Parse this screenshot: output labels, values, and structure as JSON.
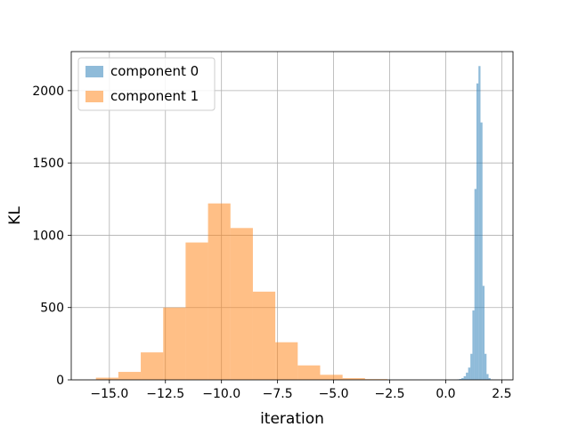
{
  "chart_data": {
    "type": "histogram",
    "xlabel": "iteration",
    "ylabel": "KL",
    "xlim": [
      -16.7,
      3.0
    ],
    "ylim": [
      0,
      2270
    ],
    "xticks": [
      -15.0,
      -12.5,
      -10.0,
      -7.5,
      -5.0,
      -2.5,
      0.0,
      2.5
    ],
    "xtick_labels": [
      "−15.0",
      "−12.5",
      "−10.0",
      "−7.5",
      "−5.0",
      "−2.5",
      "0.0",
      "2.5"
    ],
    "yticks": [
      0,
      500,
      1000,
      1500,
      2000
    ],
    "ytick_labels": [
      "0",
      "500",
      "1000",
      "1500",
      "2000"
    ],
    "grid": true,
    "legend_position": "top-left",
    "series": [
      {
        "name": "component 0",
        "color": "#1f77b4",
        "alpha": 0.5,
        "bins": [
          [
            0.5,
            0.6,
            3
          ],
          [
            0.6,
            0.7,
            6
          ],
          [
            0.7,
            0.8,
            12
          ],
          [
            0.8,
            0.9,
            25
          ],
          [
            0.9,
            1.0,
            50
          ],
          [
            1.0,
            1.1,
            85
          ],
          [
            1.1,
            1.19,
            180
          ],
          [
            1.19,
            1.28,
            480
          ],
          [
            1.28,
            1.37,
            1320
          ],
          [
            1.37,
            1.46,
            2050
          ],
          [
            1.46,
            1.55,
            2170
          ],
          [
            1.55,
            1.64,
            1780
          ],
          [
            1.64,
            1.73,
            650
          ],
          [
            1.73,
            1.82,
            180
          ],
          [
            1.82,
            1.91,
            40
          ],
          [
            1.91,
            2.0,
            12
          ],
          [
            2.0,
            2.1,
            3
          ]
        ]
      },
      {
        "name": "component 1",
        "color": "#ff7f0e",
        "alpha": 0.5,
        "bins": [
          [
            -15.6,
            -14.6,
            15
          ],
          [
            -14.6,
            -13.6,
            55
          ],
          [
            -13.6,
            -12.6,
            190
          ],
          [
            -12.6,
            -11.6,
            500
          ],
          [
            -11.6,
            -10.6,
            950
          ],
          [
            -10.6,
            -9.6,
            1220
          ],
          [
            -9.6,
            -8.6,
            1050
          ],
          [
            -8.6,
            -7.6,
            610
          ],
          [
            -7.6,
            -6.6,
            260
          ],
          [
            -6.6,
            -5.6,
            100
          ],
          [
            -5.6,
            -4.6,
            35
          ],
          [
            -4.6,
            -3.6,
            12
          ],
          [
            -3.6,
            -2.6,
            5
          ]
        ]
      }
    ]
  }
}
